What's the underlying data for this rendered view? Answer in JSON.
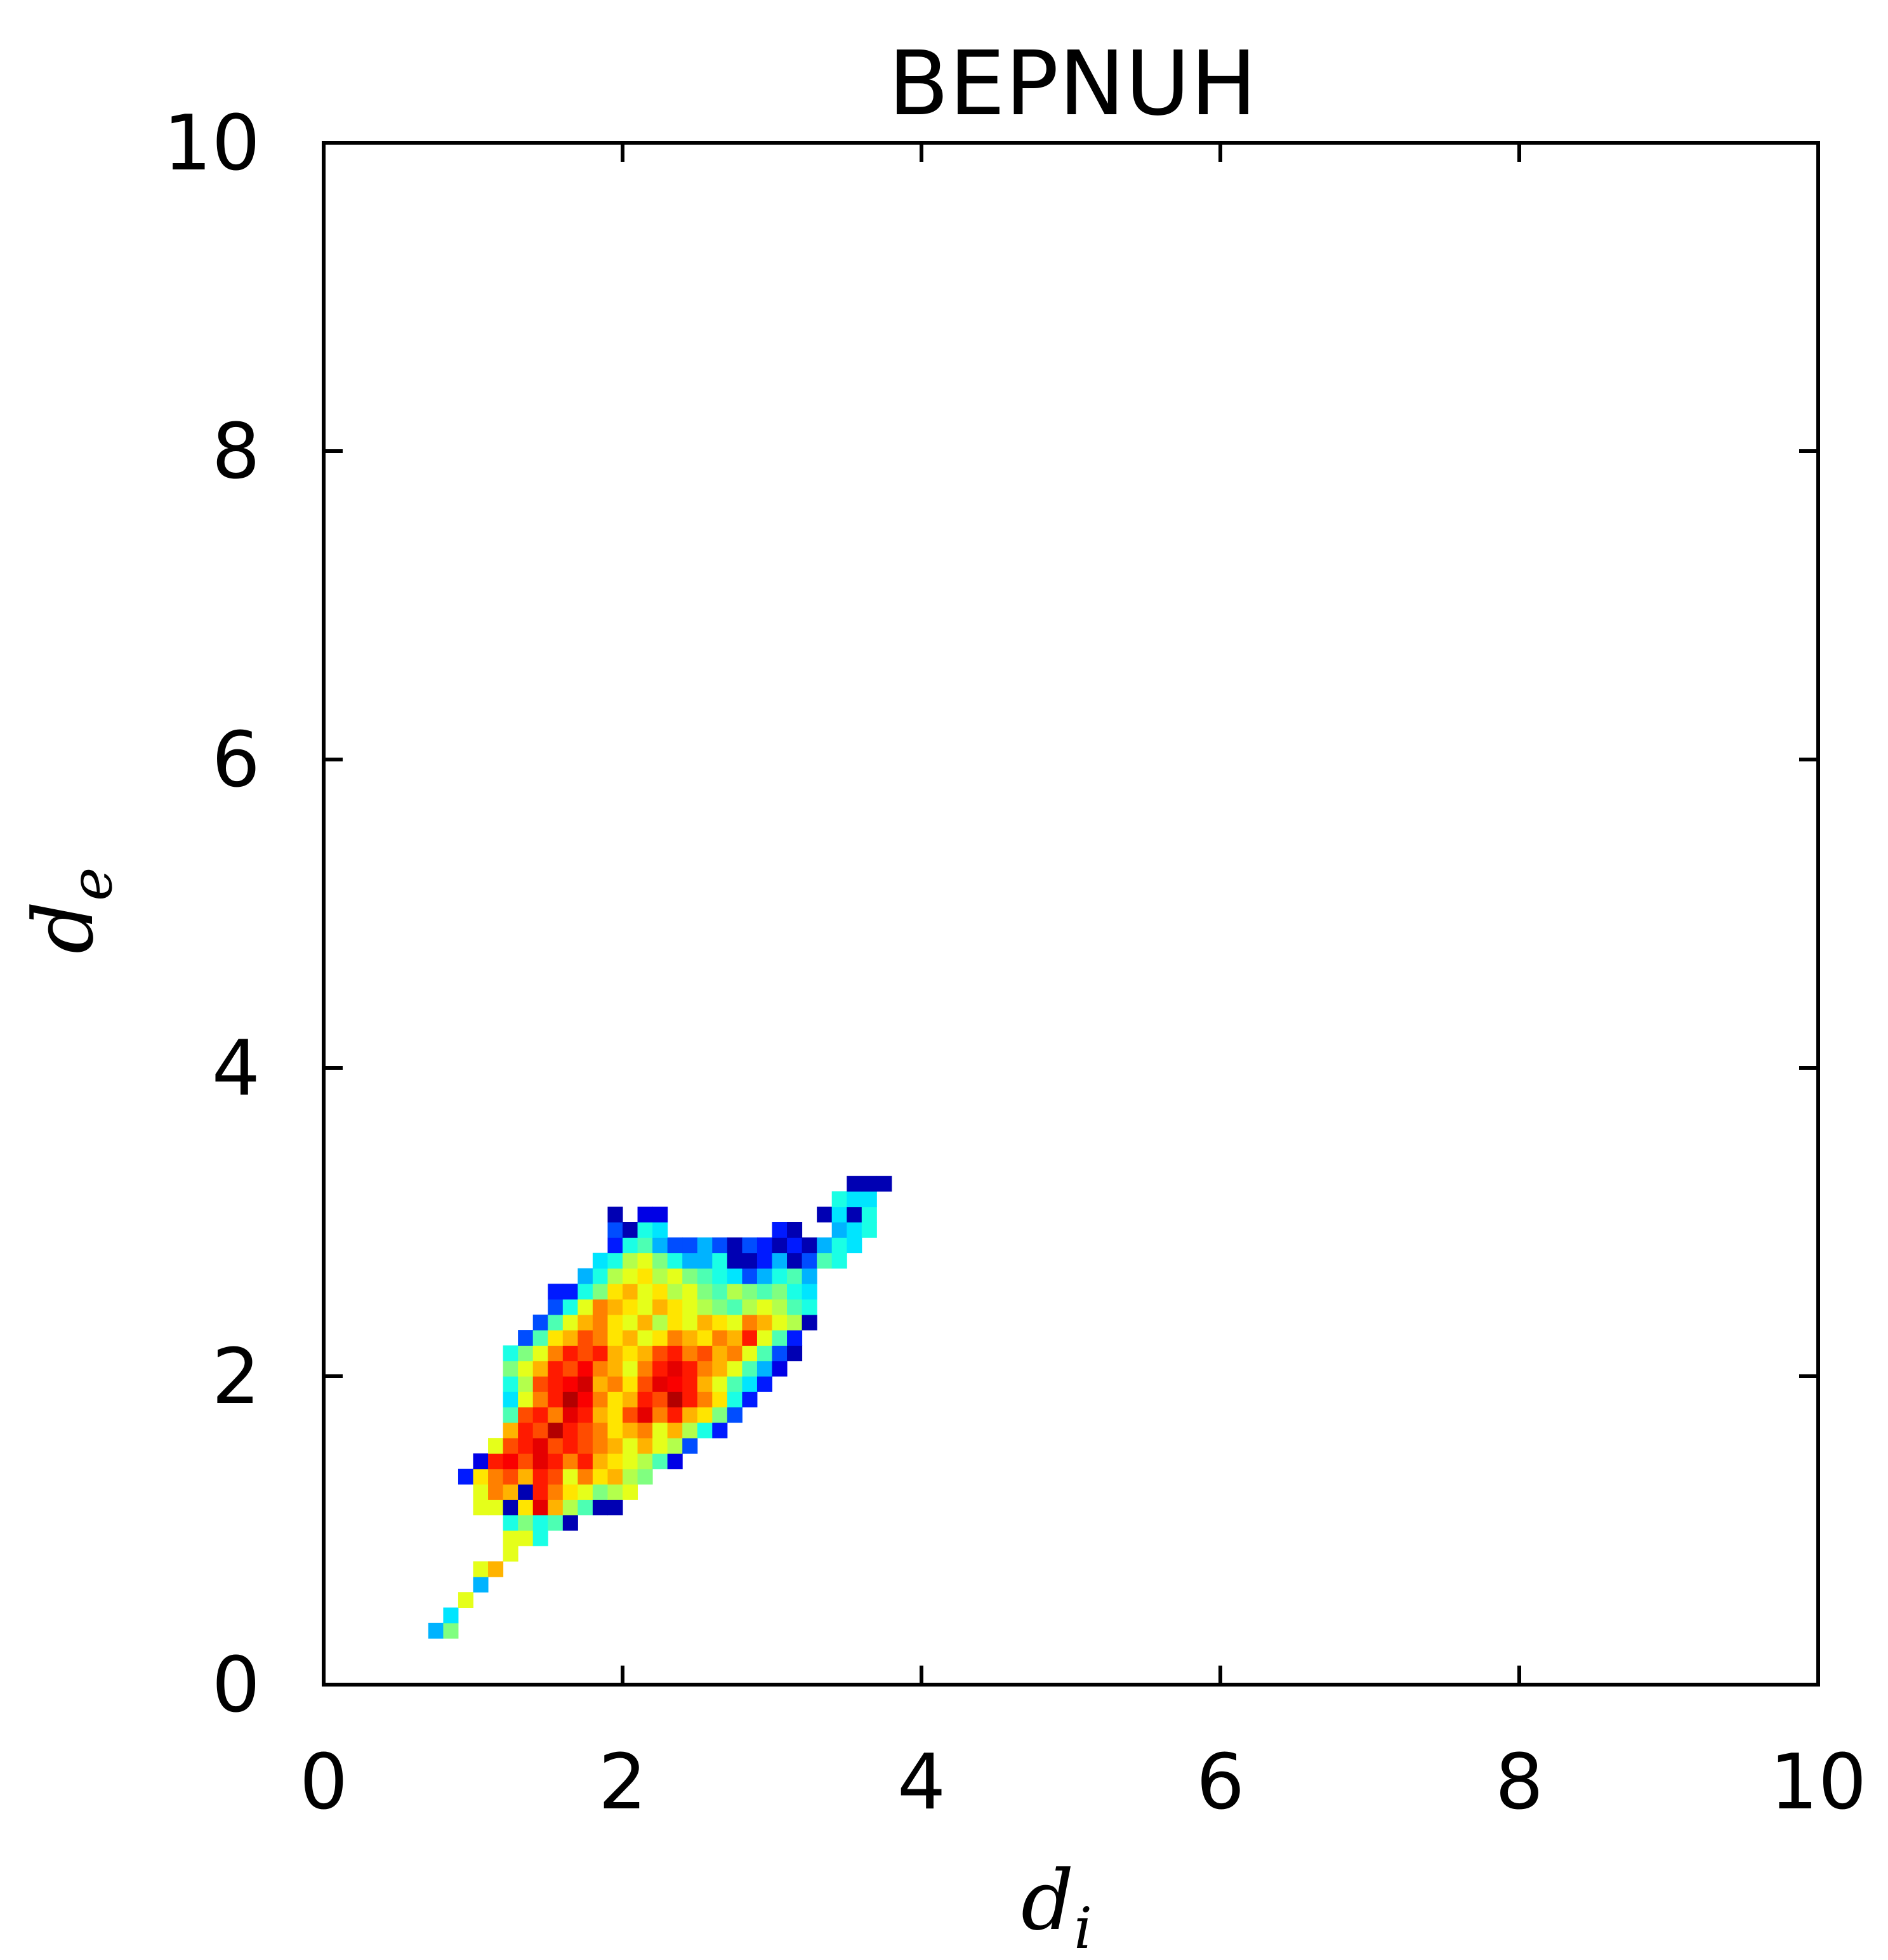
{
  "chart_data": {
    "type": "heatmap",
    "title": "BEPNUH",
    "xlabel": "d",
    "xlabel_subscript": "i",
    "ylabel": "d",
    "ylabel_subscript": "e",
    "xlim": [
      0,
      10
    ],
    "ylim": [
      0,
      10
    ],
    "xticks": [
      "0",
      "2",
      "4",
      "6",
      "8",
      "10"
    ],
    "yticks": [
      "0",
      "2",
      "4",
      "6",
      "8",
      "10"
    ],
    "bin_size": 0.1,
    "colormap": "jet",
    "grid": false,
    "cells": [
      [
        0.7,
        0.3,
        0.3
      ],
      [
        0.8,
        0.3,
        0.5
      ],
      [
        0.8,
        0.4,
        0.35
      ],
      [
        0.9,
        0.5,
        0.6
      ],
      [
        1.0,
        0.6,
        0.3
      ],
      [
        1.0,
        0.7,
        0.6
      ],
      [
        1.1,
        0.7,
        0.7
      ],
      [
        1.2,
        0.8,
        0.6
      ],
      [
        1.2,
        0.9,
        0.6
      ],
      [
        1.3,
        0.9,
        0.6
      ],
      [
        1.4,
        0.9,
        0.4
      ],
      [
        1.2,
        1.0,
        0.4
      ],
      [
        1.3,
        1.0,
        0.5
      ],
      [
        1.4,
        1.0,
        0.4
      ],
      [
        1.5,
        1.0,
        0.45
      ],
      [
        1.6,
        1.0,
        0.05
      ],
      [
        1.0,
        1.1,
        0.6
      ],
      [
        1.1,
        1.1,
        0.6
      ],
      [
        1.2,
        1.1,
        0.05
      ],
      [
        1.3,
        1.1,
        0.65
      ],
      [
        1.4,
        1.1,
        0.9
      ],
      [
        1.5,
        1.1,
        0.7
      ],
      [
        1.6,
        1.1,
        0.55
      ],
      [
        1.7,
        1.1,
        0.45
      ],
      [
        1.8,
        1.1,
        0.05
      ],
      [
        1.9,
        1.1,
        0.05
      ],
      [
        1.0,
        1.2,
        0.6
      ],
      [
        1.1,
        1.2,
        0.75
      ],
      [
        1.2,
        1.2,
        0.7
      ],
      [
        1.3,
        1.2,
        0.05
      ],
      [
        1.4,
        1.2,
        0.85
      ],
      [
        1.5,
        1.2,
        0.75
      ],
      [
        1.6,
        1.2,
        0.65
      ],
      [
        1.7,
        1.2,
        0.6
      ],
      [
        1.8,
        1.2,
        0.5
      ],
      [
        1.9,
        1.2,
        0.55
      ],
      [
        2.0,
        1.2,
        0.6
      ],
      [
        0.9,
        1.3,
        0.15
      ],
      [
        1.0,
        1.3,
        0.65
      ],
      [
        1.1,
        1.3,
        0.75
      ],
      [
        1.2,
        1.3,
        0.8
      ],
      [
        1.3,
        1.3,
        0.7
      ],
      [
        1.4,
        1.3,
        0.85
      ],
      [
        1.5,
        1.3,
        0.8
      ],
      [
        1.6,
        1.3,
        0.6
      ],
      [
        1.7,
        1.3,
        0.75
      ],
      [
        1.8,
        1.3,
        0.65
      ],
      [
        1.9,
        1.3,
        0.7
      ],
      [
        2.0,
        1.3,
        0.55
      ],
      [
        2.1,
        1.3,
        0.5
      ],
      [
        1.0,
        1.4,
        0.1
      ],
      [
        1.1,
        1.4,
        0.85
      ],
      [
        1.2,
        1.4,
        0.88
      ],
      [
        1.3,
        1.4,
        0.8
      ],
      [
        1.4,
        1.4,
        0.9
      ],
      [
        1.5,
        1.4,
        0.85
      ],
      [
        1.6,
        1.4,
        0.75
      ],
      [
        1.7,
        1.4,
        0.85
      ],
      [
        1.8,
        1.4,
        0.7
      ],
      [
        1.9,
        1.4,
        0.65
      ],
      [
        2.0,
        1.4,
        0.6
      ],
      [
        2.1,
        1.4,
        0.55
      ],
      [
        2.2,
        1.4,
        0.45
      ],
      [
        2.3,
        1.4,
        0.1
      ],
      [
        1.1,
        1.5,
        0.6
      ],
      [
        1.2,
        1.5,
        0.8
      ],
      [
        1.3,
        1.5,
        0.85
      ],
      [
        1.4,
        1.5,
        0.9
      ],
      [
        1.5,
        1.5,
        0.8
      ],
      [
        1.6,
        1.5,
        0.85
      ],
      [
        1.7,
        1.5,
        0.8
      ],
      [
        1.8,
        1.5,
        0.75
      ],
      [
        1.9,
        1.5,
        0.7
      ],
      [
        2.0,
        1.5,
        0.6
      ],
      [
        2.1,
        1.5,
        0.7
      ],
      [
        2.2,
        1.5,
        0.6
      ],
      [
        2.3,
        1.5,
        0.55
      ],
      [
        2.4,
        1.5,
        0.2
      ],
      [
        1.2,
        1.6,
        0.7
      ],
      [
        1.3,
        1.6,
        0.85
      ],
      [
        1.4,
        1.6,
        0.8
      ],
      [
        1.5,
        1.6,
        0.95
      ],
      [
        1.6,
        1.6,
        0.85
      ],
      [
        1.7,
        1.6,
        0.8
      ],
      [
        1.8,
        1.6,
        0.75
      ],
      [
        1.9,
        1.6,
        0.65
      ],
      [
        2.0,
        1.6,
        0.7
      ],
      [
        2.1,
        1.6,
        0.75
      ],
      [
        2.2,
        1.6,
        0.6
      ],
      [
        2.3,
        1.6,
        0.7
      ],
      [
        2.4,
        1.6,
        0.55
      ],
      [
        2.5,
        1.6,
        0.4
      ],
      [
        2.6,
        1.6,
        0.15
      ],
      [
        1.2,
        1.7,
        0.45
      ],
      [
        1.3,
        1.7,
        0.8
      ],
      [
        1.4,
        1.7,
        0.85
      ],
      [
        1.5,
        1.7,
        0.75
      ],
      [
        1.6,
        1.7,
        0.9
      ],
      [
        1.7,
        1.7,
        0.85
      ],
      [
        1.8,
        1.7,
        0.7
      ],
      [
        1.9,
        1.7,
        0.65
      ],
      [
        2.0,
        1.7,
        0.8
      ],
      [
        2.1,
        1.7,
        0.9
      ],
      [
        2.2,
        1.7,
        0.75
      ],
      [
        2.3,
        1.7,
        0.85
      ],
      [
        2.4,
        1.7,
        0.7
      ],
      [
        2.5,
        1.7,
        0.65
      ],
      [
        2.6,
        1.7,
        0.5
      ],
      [
        2.7,
        1.7,
        0.2
      ],
      [
        1.2,
        1.8,
        0.35
      ],
      [
        1.3,
        1.8,
        0.6
      ],
      [
        1.4,
        1.8,
        0.75
      ],
      [
        1.5,
        1.8,
        0.85
      ],
      [
        1.6,
        1.8,
        0.95
      ],
      [
        1.7,
        1.8,
        0.88
      ],
      [
        1.8,
        1.8,
        0.75
      ],
      [
        1.9,
        1.8,
        0.65
      ],
      [
        2.0,
        1.8,
        0.7
      ],
      [
        2.1,
        1.8,
        0.85
      ],
      [
        2.2,
        1.8,
        0.8
      ],
      [
        2.3,
        1.8,
        0.95
      ],
      [
        2.4,
        1.8,
        0.85
      ],
      [
        2.5,
        1.8,
        0.75
      ],
      [
        2.6,
        1.8,
        0.65
      ],
      [
        2.7,
        1.8,
        0.4
      ],
      [
        2.8,
        1.8,
        0.15
      ],
      [
        1.2,
        1.9,
        0.4
      ],
      [
        1.3,
        1.9,
        0.55
      ],
      [
        1.4,
        1.9,
        0.8
      ],
      [
        1.5,
        1.9,
        0.85
      ],
      [
        1.6,
        1.9,
        0.88
      ],
      [
        1.7,
        1.9,
        0.92
      ],
      [
        1.8,
        1.9,
        0.7
      ],
      [
        1.9,
        1.9,
        0.75
      ],
      [
        2.0,
        1.9,
        0.65
      ],
      [
        2.1,
        1.9,
        0.8
      ],
      [
        2.2,
        1.9,
        0.9
      ],
      [
        2.3,
        1.9,
        0.88
      ],
      [
        2.4,
        1.9,
        0.85
      ],
      [
        2.5,
        1.9,
        0.7
      ],
      [
        2.6,
        1.9,
        0.6
      ],
      [
        2.7,
        1.9,
        0.45
      ],
      [
        2.8,
        1.9,
        0.35
      ],
      [
        2.9,
        1.9,
        0.15
      ],
      [
        1.2,
        2.0,
        0.5
      ],
      [
        1.3,
        2.0,
        0.6
      ],
      [
        1.4,
        2.0,
        0.7
      ],
      [
        1.5,
        2.0,
        0.85
      ],
      [
        1.6,
        2.0,
        0.8
      ],
      [
        1.7,
        2.0,
        0.88
      ],
      [
        1.8,
        2.0,
        0.75
      ],
      [
        1.9,
        2.0,
        0.7
      ],
      [
        2.0,
        2.0,
        0.6
      ],
      [
        2.1,
        2.0,
        0.75
      ],
      [
        2.2,
        2.0,
        0.85
      ],
      [
        2.3,
        2.0,
        0.9
      ],
      [
        2.4,
        2.0,
        0.85
      ],
      [
        2.5,
        2.0,
        0.75
      ],
      [
        2.6,
        2.0,
        0.7
      ],
      [
        2.7,
        2.0,
        0.6
      ],
      [
        2.8,
        2.0,
        0.45
      ],
      [
        2.9,
        2.0,
        0.3
      ],
      [
        3.0,
        2.0,
        0.1
      ],
      [
        1.2,
        2.1,
        0.4
      ],
      [
        1.3,
        2.1,
        0.5
      ],
      [
        1.4,
        2.1,
        0.6
      ],
      [
        1.5,
        2.1,
        0.75
      ],
      [
        1.6,
        2.1,
        0.85
      ],
      [
        1.7,
        2.1,
        0.8
      ],
      [
        1.8,
        2.1,
        0.85
      ],
      [
        1.9,
        2.1,
        0.7
      ],
      [
        2.0,
        2.1,
        0.65
      ],
      [
        2.1,
        2.1,
        0.7
      ],
      [
        2.2,
        2.1,
        0.8
      ],
      [
        2.3,
        2.1,
        0.85
      ],
      [
        2.4,
        2.1,
        0.75
      ],
      [
        2.5,
        2.1,
        0.8
      ],
      [
        2.6,
        2.1,
        0.7
      ],
      [
        2.7,
        2.1,
        0.75
      ],
      [
        2.8,
        2.1,
        0.6
      ],
      [
        2.9,
        2.1,
        0.45
      ],
      [
        3.0,
        2.1,
        0.2
      ],
      [
        3.1,
        2.1,
        0.05
      ],
      [
        1.3,
        2.2,
        0.2
      ],
      [
        1.4,
        2.2,
        0.45
      ],
      [
        1.5,
        2.2,
        0.65
      ],
      [
        1.6,
        2.2,
        0.7
      ],
      [
        1.7,
        2.2,
        0.8
      ],
      [
        1.8,
        2.2,
        0.75
      ],
      [
        1.9,
        2.2,
        0.65
      ],
      [
        2.0,
        2.2,
        0.7
      ],
      [
        2.1,
        2.2,
        0.6
      ],
      [
        2.2,
        2.2,
        0.65
      ],
      [
        2.3,
        2.2,
        0.75
      ],
      [
        2.4,
        2.2,
        0.7
      ],
      [
        2.5,
        2.2,
        0.65
      ],
      [
        2.6,
        2.2,
        0.75
      ],
      [
        2.7,
        2.2,
        0.7
      ],
      [
        2.8,
        2.2,
        0.85
      ],
      [
        2.9,
        2.2,
        0.6
      ],
      [
        3.0,
        2.2,
        0.45
      ],
      [
        3.1,
        2.2,
        0.15
      ],
      [
        1.4,
        2.3,
        0.2
      ],
      [
        1.5,
        2.3,
        0.45
      ],
      [
        1.6,
        2.3,
        0.6
      ],
      [
        1.7,
        2.3,
        0.7
      ],
      [
        1.8,
        2.3,
        0.75
      ],
      [
        1.9,
        2.3,
        0.65
      ],
      [
        2.0,
        2.3,
        0.6
      ],
      [
        2.1,
        2.3,
        0.7
      ],
      [
        2.2,
        2.3,
        0.55
      ],
      [
        2.3,
        2.3,
        0.65
      ],
      [
        2.4,
        2.3,
        0.6
      ],
      [
        2.5,
        2.3,
        0.7
      ],
      [
        2.6,
        2.3,
        0.65
      ],
      [
        2.7,
        2.3,
        0.6
      ],
      [
        2.8,
        2.3,
        0.75
      ],
      [
        2.9,
        2.3,
        0.7
      ],
      [
        3.0,
        2.3,
        0.6
      ],
      [
        3.1,
        2.3,
        0.55
      ],
      [
        3.2,
        2.3,
        0.05
      ],
      [
        1.5,
        2.4,
        0.2
      ],
      [
        1.6,
        2.4,
        0.4
      ],
      [
        1.7,
        2.4,
        0.6
      ],
      [
        1.8,
        2.4,
        0.75
      ],
      [
        1.9,
        2.4,
        0.7
      ],
      [
        2.0,
        2.4,
        0.65
      ],
      [
        2.1,
        2.4,
        0.6
      ],
      [
        2.2,
        2.4,
        0.7
      ],
      [
        2.3,
        2.4,
        0.65
      ],
      [
        2.4,
        2.4,
        0.6
      ],
      [
        2.5,
        2.4,
        0.55
      ],
      [
        2.6,
        2.4,
        0.5
      ],
      [
        2.7,
        2.4,
        0.45
      ],
      [
        2.8,
        2.4,
        0.55
      ],
      [
        2.9,
        2.4,
        0.6
      ],
      [
        3.0,
        2.4,
        0.55
      ],
      [
        3.1,
        2.4,
        0.45
      ],
      [
        3.2,
        2.4,
        0.4
      ],
      [
        1.5,
        2.5,
        0.15
      ],
      [
        1.6,
        2.5,
        0.15
      ],
      [
        1.7,
        2.5,
        0.4
      ],
      [
        1.8,
        2.5,
        0.5
      ],
      [
        1.9,
        2.5,
        0.65
      ],
      [
        2.0,
        2.5,
        0.7
      ],
      [
        2.1,
        2.5,
        0.6
      ],
      [
        2.2,
        2.5,
        0.65
      ],
      [
        2.3,
        2.5,
        0.55
      ],
      [
        2.4,
        2.5,
        0.6
      ],
      [
        2.5,
        2.5,
        0.5
      ],
      [
        2.6,
        2.5,
        0.45
      ],
      [
        2.7,
        2.5,
        0.55
      ],
      [
        2.8,
        2.5,
        0.5
      ],
      [
        2.9,
        2.5,
        0.45
      ],
      [
        3.0,
        2.5,
        0.5
      ],
      [
        3.1,
        2.5,
        0.4
      ],
      [
        3.2,
        2.5,
        0.35
      ],
      [
        1.7,
        2.6,
        0.3
      ],
      [
        1.8,
        2.6,
        0.4
      ],
      [
        1.9,
        2.6,
        0.55
      ],
      [
        2.0,
        2.6,
        0.6
      ],
      [
        2.1,
        2.6,
        0.65
      ],
      [
        2.2,
        2.6,
        0.55
      ],
      [
        2.3,
        2.6,
        0.6
      ],
      [
        2.4,
        2.6,
        0.5
      ],
      [
        2.5,
        2.6,
        0.45
      ],
      [
        2.6,
        2.6,
        0.4
      ],
      [
        2.7,
        2.6,
        0.35
      ],
      [
        2.8,
        2.6,
        0.2
      ],
      [
        2.9,
        2.6,
        0.3
      ],
      [
        3.0,
        2.6,
        0.4
      ],
      [
        3.1,
        2.6,
        0.45
      ],
      [
        3.2,
        2.6,
        0.3
      ],
      [
        1.8,
        2.7,
        0.35
      ],
      [
        1.9,
        2.7,
        0.4
      ],
      [
        2.0,
        2.7,
        0.55
      ],
      [
        2.1,
        2.7,
        0.6
      ],
      [
        2.2,
        2.7,
        0.5
      ],
      [
        2.3,
        2.7,
        0.4
      ],
      [
        2.4,
        2.7,
        0.3
      ],
      [
        2.5,
        2.7,
        0.3
      ],
      [
        2.6,
        2.7,
        0.4
      ],
      [
        2.7,
        2.7,
        0.05
      ],
      [
        2.8,
        2.7,
        0.05
      ],
      [
        2.9,
        2.7,
        0.15
      ],
      [
        3.0,
        2.7,
        0.3
      ],
      [
        3.1,
        2.7,
        0.05
      ],
      [
        3.2,
        2.7,
        0.2
      ],
      [
        3.3,
        2.7,
        0.45
      ],
      [
        3.4,
        2.7,
        0.4
      ],
      [
        1.9,
        2.8,
        0.15
      ],
      [
        2.0,
        2.8,
        0.4
      ],
      [
        2.1,
        2.8,
        0.45
      ],
      [
        2.2,
        2.8,
        0.3
      ],
      [
        2.3,
        2.8,
        0.2
      ],
      [
        2.4,
        2.8,
        0.2
      ],
      [
        2.5,
        2.8,
        0.3
      ],
      [
        2.6,
        2.8,
        0.2
      ],
      [
        2.7,
        2.8,
        0.05
      ],
      [
        2.8,
        2.8,
        0.2
      ],
      [
        2.9,
        2.8,
        0.15
      ],
      [
        3.0,
        2.8,
        0.05
      ],
      [
        3.1,
        2.8,
        0.15
      ],
      [
        3.2,
        2.8,
        0.05
      ],
      [
        3.3,
        2.8,
        0.3
      ],
      [
        3.4,
        2.8,
        0.4
      ],
      [
        3.5,
        2.8,
        0.35
      ],
      [
        1.9,
        2.9,
        0.2
      ],
      [
        2.0,
        2.9,
        0.05
      ],
      [
        2.1,
        2.9,
        0.4
      ],
      [
        2.2,
        2.9,
        0.35
      ],
      [
        3.0,
        2.9,
        0.15
      ],
      [
        3.1,
        2.9,
        0.05
      ],
      [
        3.4,
        2.9,
        0.3
      ],
      [
        3.5,
        2.9,
        0.35
      ],
      [
        3.6,
        2.9,
        0.4
      ],
      [
        1.9,
        3.0,
        0.05
      ],
      [
        2.1,
        3.0,
        0.1
      ],
      [
        2.2,
        3.0,
        0.1
      ],
      [
        3.3,
        3.0,
        0.05
      ],
      [
        3.4,
        3.0,
        0.35
      ],
      [
        3.5,
        3.0,
        0.05
      ],
      [
        3.6,
        3.0,
        0.4
      ],
      [
        3.4,
        3.1,
        0.4
      ],
      [
        3.5,
        3.1,
        0.35
      ],
      [
        3.6,
        3.1,
        0.35
      ],
      [
        3.5,
        3.2,
        0.05
      ],
      [
        3.6,
        3.2,
        0.05
      ],
      [
        3.7,
        3.2,
        0.05
      ]
    ]
  }
}
